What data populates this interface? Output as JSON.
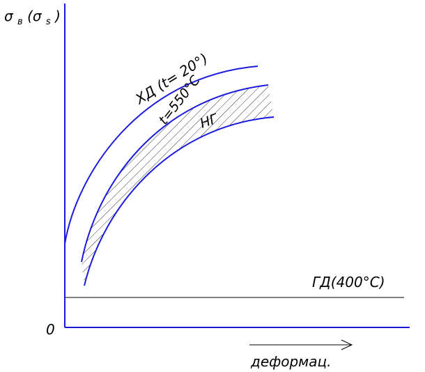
{
  "axes": {
    "y_label": {
      "symbol": "σ",
      "sub1": "в",
      "paren_symbol": "(σ",
      "sub2": "s",
      "close": ")"
    },
    "origin": "0",
    "x_label": "деформац."
  },
  "curves": {
    "cold": "ХД (t= 20°)",
    "warm": "t=550°C",
    "region": "НГ",
    "hot": "ГД(400°C)"
  }
}
